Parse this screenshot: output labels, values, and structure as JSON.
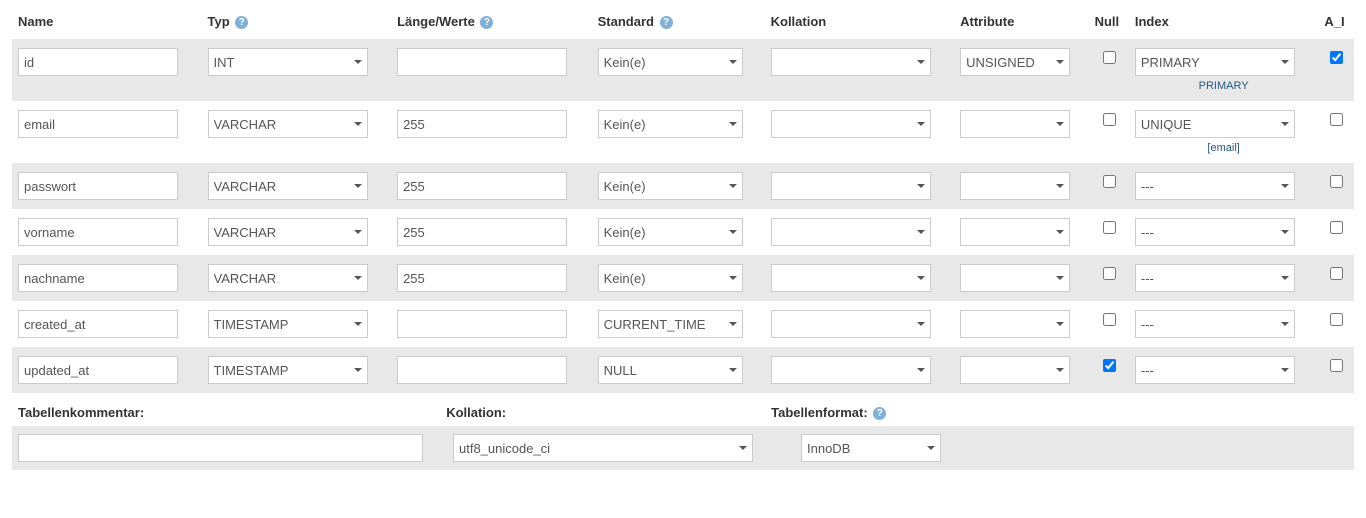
{
  "headers": {
    "name": "Name",
    "type": "Typ",
    "length": "Länge/Werte",
    "default": "Standard",
    "collation": "Kollation",
    "attributes": "Attribute",
    "null": "Null",
    "index": "Index",
    "ai": "A_I"
  },
  "rows": [
    {
      "name": "id",
      "type": "INT",
      "length": "",
      "default": "Kein(e)",
      "collation": "",
      "attribute": "UNSIGNED",
      "null": false,
      "index": "PRIMARY",
      "index_sub": "PRIMARY",
      "ai": true
    },
    {
      "name": "email",
      "type": "VARCHAR",
      "length": "255",
      "default": "Kein(e)",
      "collation": "",
      "attribute": "",
      "null": false,
      "index": "UNIQUE",
      "index_sub": "[email]",
      "ai": false
    },
    {
      "name": "passwort",
      "type": "VARCHAR",
      "length": "255",
      "default": "Kein(e)",
      "collation": "",
      "attribute": "",
      "null": false,
      "index": "---",
      "index_sub": "",
      "ai": false
    },
    {
      "name": "vorname",
      "type": "VARCHAR",
      "length": "255",
      "default": "Kein(e)",
      "collation": "",
      "attribute": "",
      "null": false,
      "index": "---",
      "index_sub": "",
      "ai": false
    },
    {
      "name": "nachname",
      "type": "VARCHAR",
      "length": "255",
      "default": "Kein(e)",
      "collation": "",
      "attribute": "",
      "null": false,
      "index": "---",
      "index_sub": "",
      "ai": false
    },
    {
      "name": "created_at",
      "type": "TIMESTAMP",
      "length": "",
      "default": "CURRENT_TIME",
      "collation": "",
      "attribute": "",
      "null": false,
      "index": "---",
      "index_sub": "",
      "ai": false
    },
    {
      "name": "updated_at",
      "type": "TIMESTAMP",
      "length": "",
      "default": "NULL",
      "collation": "",
      "attribute": "",
      "null": true,
      "index": "---",
      "index_sub": "",
      "ai": false
    }
  ],
  "footer": {
    "comment_label": "Tabellenkommentar:",
    "collation_label": "Kollation:",
    "engine_label": "Tabellenformat:",
    "comment_value": "",
    "collation_value": "utf8_unicode_ci",
    "engine_value": "InnoDB"
  }
}
